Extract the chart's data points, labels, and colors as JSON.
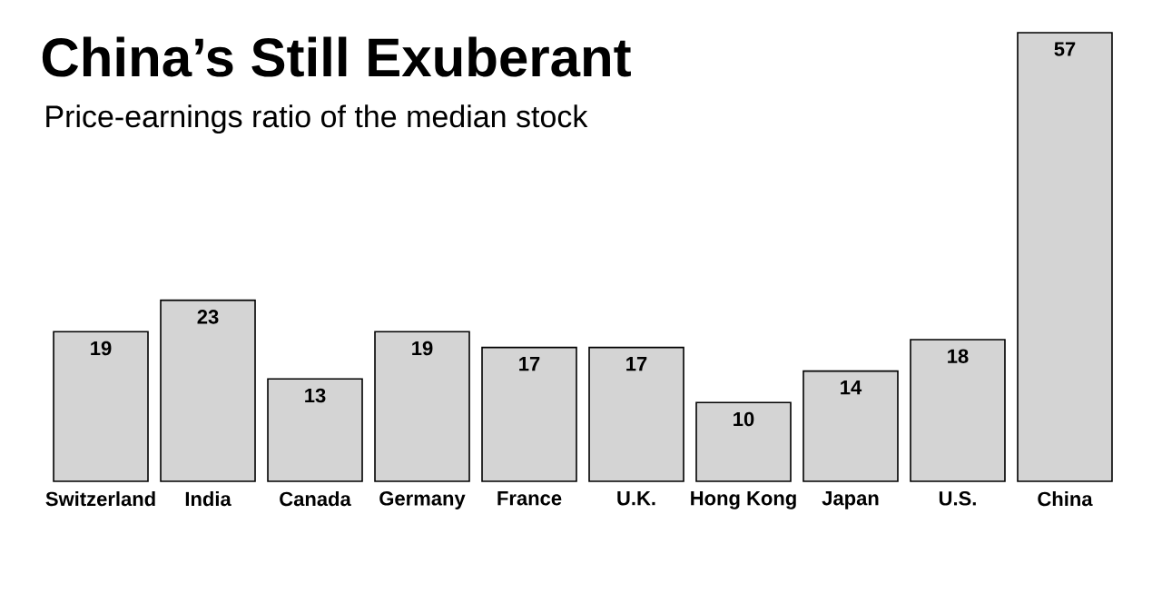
{
  "chart_data": {
    "type": "bar",
    "title": "China’s Still Exuberant",
    "subtitle": "Price-earnings ratio of the median stock",
    "categories": [
      "Switzerland",
      "India",
      "Canada",
      "Germany",
      "France",
      "U.K.",
      "Hong Kong",
      "Japan",
      "U.S.",
      "China"
    ],
    "values": [
      19,
      23,
      13,
      19,
      17,
      17,
      10,
      14,
      18,
      57
    ],
    "color": "#d4d4d4",
    "data_labels": true
  }
}
